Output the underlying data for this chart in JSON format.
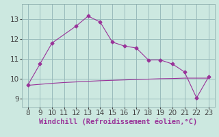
{
  "windchill_x": [
    8,
    9,
    10,
    12,
    13,
    14,
    15,
    16,
    17,
    18,
    19,
    20,
    21,
    22,
    23
  ],
  "windchill_y": [
    9.7,
    10.75,
    11.8,
    12.65,
    13.15,
    12.85,
    11.85,
    11.65,
    11.55,
    10.95,
    10.95,
    10.75,
    10.35,
    9.05,
    10.1
  ],
  "temp_x": [
    8,
    9,
    10,
    11,
    12,
    13,
    14,
    15,
    16,
    17,
    18,
    19,
    20,
    21,
    22,
    23
  ],
  "temp_y": [
    9.68,
    9.73,
    9.78,
    9.82,
    9.85,
    9.88,
    9.91,
    9.93,
    9.95,
    9.97,
    9.99,
    10.01,
    10.02,
    10.04,
    10.04,
    10.04
  ],
  "line_color": "#993399",
  "bg_color": "#cce8e0",
  "grid_color": "#99bbbb",
  "xlabel": "Windchill (Refroidissement éolien,°C)",
  "xlim": [
    7.5,
    23.5
  ],
  "ylim": [
    8.6,
    13.75
  ],
  "yticks": [
    9,
    10,
    11,
    12,
    13
  ],
  "xticks": [
    8,
    9,
    10,
    11,
    12,
    13,
    14,
    15,
    16,
    17,
    18,
    19,
    20,
    21,
    22,
    23
  ],
  "marker": "D",
  "marker_size": 2.5,
  "font_size": 7.5,
  "xlabel_fontsize": 7.5
}
